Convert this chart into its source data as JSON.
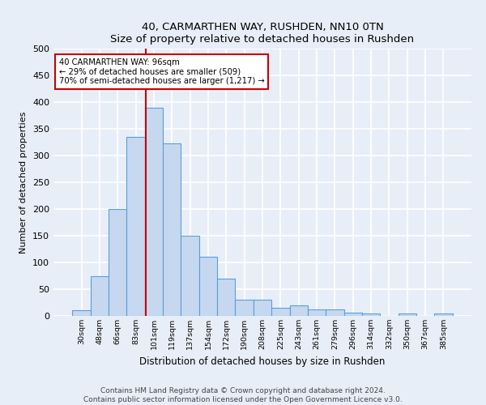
{
  "title": "40, CARMARTHEN WAY, RUSHDEN, NN10 0TN",
  "subtitle": "Size of property relative to detached houses in Rushden",
  "xlabel": "Distribution of detached houses by size in Rushden",
  "ylabel": "Number of detached properties",
  "bar_labels": [
    "30sqm",
    "48sqm",
    "66sqm",
    "83sqm",
    "101sqm",
    "119sqm",
    "137sqm",
    "154sqm",
    "172sqm",
    "190sqm",
    "208sqm",
    "225sqm",
    "243sqm",
    "261sqm",
    "279sqm",
    "296sqm",
    "314sqm",
    "332sqm",
    "350sqm",
    "367sqm",
    "385sqm"
  ],
  "bar_values": [
    10,
    75,
    200,
    335,
    390,
    322,
    150,
    110,
    70,
    30,
    30,
    15,
    20,
    12,
    12,
    6,
    5,
    0,
    4,
    0,
    5
  ],
  "bar_color": "#c5d8f0",
  "bar_edge_color": "#5a9fd4",
  "ylim": [
    0,
    500
  ],
  "yticks": [
    0,
    50,
    100,
    150,
    200,
    250,
    300,
    350,
    400,
    450,
    500
  ],
  "vline_x_index": 3.55,
  "annotation_box_text": "40 CARMARTHEN WAY: 96sqm\n← 29% of detached houses are smaller (509)\n70% of semi-detached houses are larger (1,217) →",
  "annotation_box_color": "#ffffff",
  "annotation_box_edge_color": "#cc0000",
  "vline_color": "#cc0000",
  "footer_line1": "Contains HM Land Registry data © Crown copyright and database right 2024.",
  "footer_line2": "Contains public sector information licensed under the Open Government Licence v3.0.",
  "background_color": "#e8eef8",
  "plot_bg_color": "#e8eef8",
  "grid_color": "#ffffff"
}
